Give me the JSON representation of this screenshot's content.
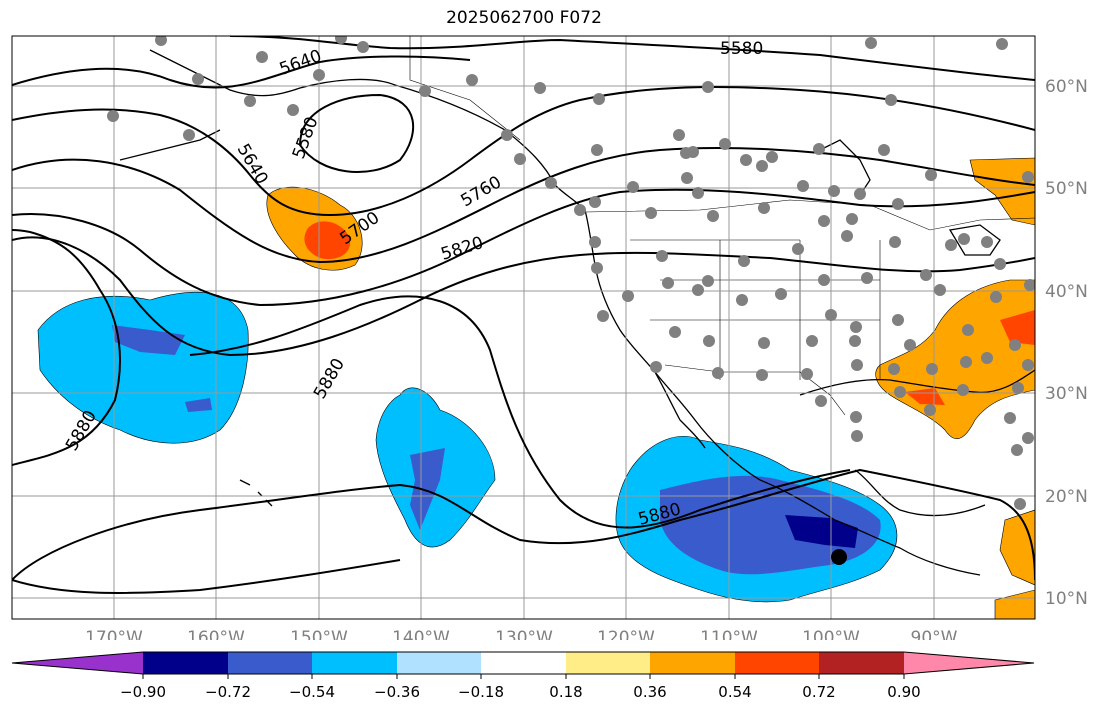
{
  "title": "2025062700 F072",
  "map": {
    "lon_labels": [
      "170°W",
      "160°W",
      "150°W",
      "140°W",
      "130°W",
      "120°W",
      "110°W",
      "100°W",
      "90°W"
    ],
    "lat_labels": [
      "60°N",
      "50°N",
      "40°N",
      "30°N",
      "20°N",
      "10°N"
    ],
    "contour_labels": [
      "5580",
      "5640",
      "5580",
      "5640",
      "5700",
      "5760",
      "5820",
      "5880",
      "5880",
      "5880"
    ]
  },
  "colorbar": {
    "ticks": [
      "−0.90",
      "−0.72",
      "−0.54",
      "−0.36",
      "−0.18",
      "0.18",
      "0.36",
      "0.54",
      "0.72",
      "0.90"
    ],
    "colors": [
      "#9932cc",
      "#00008b",
      "#3a5bcc",
      "#00bfff",
      "#b0e2ff",
      "#ffffff",
      "#ffee88",
      "#ffa500",
      "#ff4500",
      "#b22222",
      "#ff88aa"
    ]
  },
  "colors": {
    "grid": "#999999",
    "contour": "#000000",
    "coast": "#000000",
    "station": "#808080",
    "axis_label": "#808080"
  }
}
